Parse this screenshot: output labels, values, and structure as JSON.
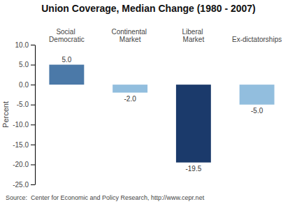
{
  "chart_data": {
    "type": "bar",
    "title": "Union Coverage, Median Change (1980 - 2007)",
    "categories": [
      "Social Democratic",
      "Continental Market",
      "Liberal Market",
      "Ex-dictatorships"
    ],
    "values": [
      5.0,
      -2.0,
      -19.5,
      -5.0
    ],
    "value_labels": [
      "5.0",
      "-2.0",
      "-19.5",
      "-5.0"
    ],
    "data_labels": true,
    "colors": [
      "#4b79a8",
      "#92bede",
      "#1b3a6b",
      "#92bede"
    ],
    "ylabel": "Percent",
    "ylim": [
      -25.0,
      10.0
    ],
    "yticks": [
      {
        "value": 10.0,
        "label": "10.0"
      },
      {
        "value": 5.0,
        "label": "5.0"
      },
      {
        "value": 0.0,
        "label": "0.0"
      },
      {
        "value": -5.0,
        "label": "-5.0"
      },
      {
        "value": -10.0,
        "label": "-10.0"
      },
      {
        "value": -15.0,
        "label": "-15.0"
      },
      {
        "value": -20.0,
        "label": "-20.0"
      },
      {
        "value": -25.0,
        "label": "-25.0"
      }
    ],
    "grid": false,
    "source": "Source:  Center for Economic and Policy Research, http://www.cepr.net"
  }
}
